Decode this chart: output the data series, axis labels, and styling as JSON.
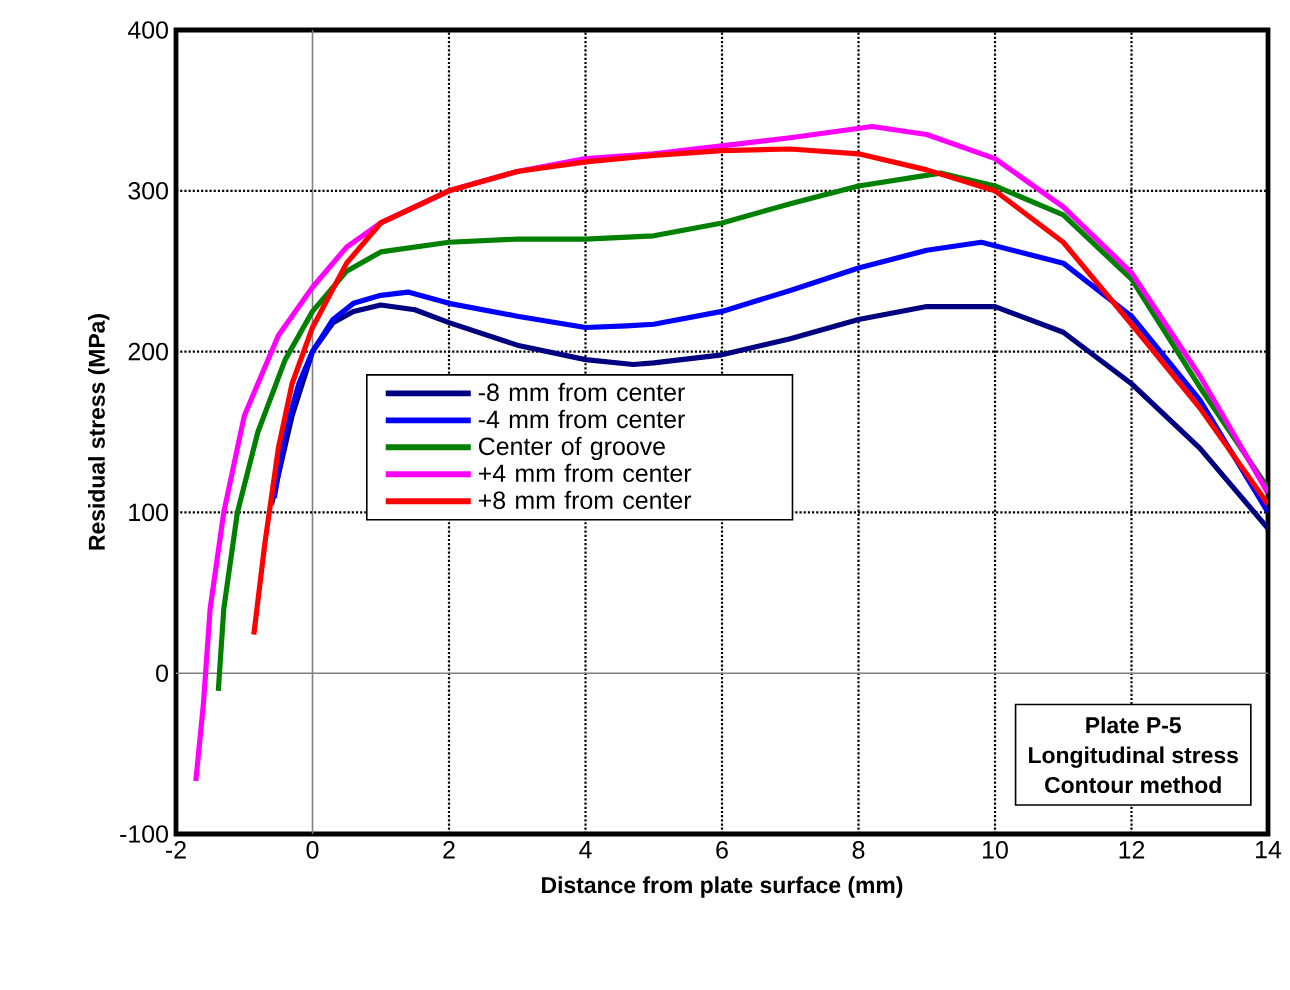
{
  "chart_data": {
    "type": "line",
    "xlabel": "Distance from plate surface (mm)",
    "ylabel": "Residual stress (MPa)",
    "xlim": [
      -2,
      14
    ],
    "ylim": [
      -100,
      400
    ],
    "xticks": [
      -2,
      0,
      2,
      4,
      6,
      8,
      10,
      12,
      14
    ],
    "yticks": [
      -100,
      0,
      100,
      200,
      300,
      400
    ],
    "grid": true,
    "legend": "center",
    "marker": "none",
    "line_style": "solid",
    "annotations": [
      "Plate P-5",
      "Longitudinal stress",
      "Contour method"
    ],
    "series": [
      {
        "name": "-8 mm from center",
        "color": "#000080",
        "x": [
          -0.6,
          -0.3,
          0,
          0.3,
          0.6,
          1,
          1.5,
          2,
          3,
          4,
          4.7,
          5,
          6,
          7,
          8,
          9,
          10,
          11,
          12,
          13,
          14
        ],
        "values": [
          105,
          160,
          200,
          218,
          225,
          229,
          226,
          218,
          204,
          195,
          192,
          193,
          198,
          208,
          220,
          228,
          228,
          212,
          180,
          140,
          90
        ]
      },
      {
        "name": "-4 mm from center",
        "color": "#0000ff",
        "x": [
          -0.56,
          -0.4,
          -0.2,
          0,
          0.3,
          0.6,
          1,
          1.4,
          2,
          3,
          4,
          4.6,
          5,
          6,
          7,
          8,
          9,
          9.8,
          11,
          12,
          13,
          14
        ],
        "values": [
          109,
          150,
          180,
          200,
          220,
          230,
          235,
          237,
          230,
          222,
          215,
          216,
          217,
          225,
          238,
          252,
          263,
          268,
          255,
          222,
          170,
          100
        ]
      },
      {
        "name": "Center of groove",
        "color": "#008000",
        "x": [
          -1.38,
          -1.3,
          -1.1,
          -0.8,
          -0.4,
          0,
          0.5,
          1,
          2,
          3,
          4,
          5,
          6,
          7,
          8,
          9.2,
          10,
          11,
          12,
          13,
          14
        ],
        "values": [
          -11,
          40,
          100,
          150,
          195,
          225,
          250,
          262,
          268,
          270,
          270,
          272,
          280,
          292,
          303,
          311,
          303,
          285,
          245,
          178,
          115
        ]
      },
      {
        "name": "+4 mm from center",
        "color": "#ff00ff",
        "x": [
          -1.71,
          -1.6,
          -1.5,
          -1.3,
          -1,
          -0.5,
          0,
          0.5,
          1,
          2,
          3,
          4,
          5,
          6,
          7,
          8.2,
          9,
          10,
          11,
          12,
          13,
          14
        ],
        "values": [
          -67,
          -20,
          40,
          100,
          160,
          210,
          240,
          265,
          280,
          300,
          312,
          320,
          323,
          328,
          333,
          340,
          335,
          320,
          290,
          249,
          185,
          112
        ]
      },
      {
        "name": "+8 mm from center",
        "color": "#ff0000",
        "x": [
          -0.86,
          -0.7,
          -0.5,
          -0.3,
          0,
          0.5,
          1,
          2,
          3,
          4,
          5,
          6,
          7,
          8,
          9,
          10,
          11,
          12,
          13,
          14
        ],
        "values": [
          24,
          80,
          140,
          180,
          215,
          255,
          280,
          300,
          312,
          318,
          322,
          325,
          326,
          323,
          313,
          300,
          268,
          217,
          165,
          105
        ]
      }
    ]
  }
}
